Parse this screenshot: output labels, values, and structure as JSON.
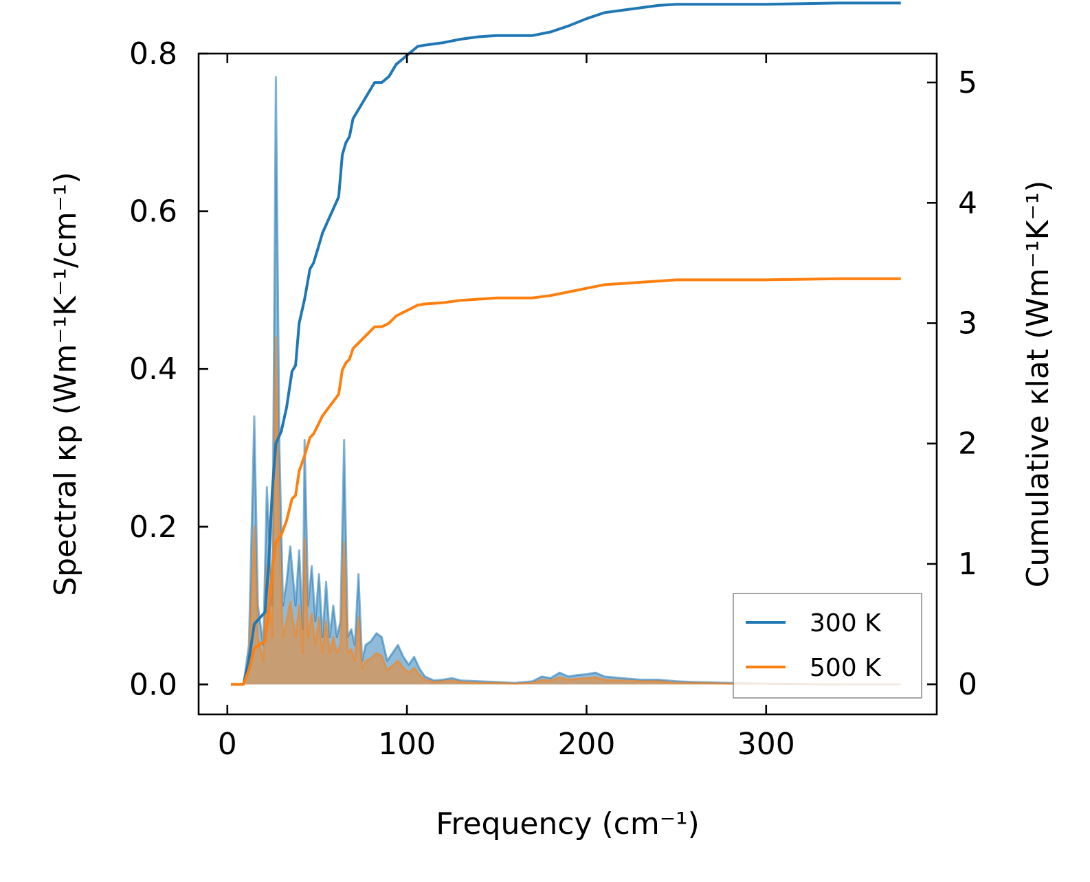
{
  "chart_data": {
    "type": "area+line",
    "title": "",
    "xlabel": "Frequency (cm⁻¹)",
    "ylabel_left": "Spectral κp (Wm⁻¹K⁻¹/cm⁻¹)",
    "ylabel_right": "Cumulative κlat (Wm⁻¹K⁻¹)",
    "xlim": [
      -16,
      395
    ],
    "ylim_left": [
      -0.038,
      0.8
    ],
    "ylim_right": [
      -0.25,
      5.24
    ],
    "x_ticks": [
      0,
      100,
      200,
      300
    ],
    "x_tick_labels": [
      "0",
      "100",
      "200",
      "300"
    ],
    "y_left_ticks": [
      0.0,
      0.2,
      0.4,
      0.6,
      0.8
    ],
    "y_left_tick_labels": [
      "0.0",
      "0.2",
      "0.4",
      "0.6",
      "0.8"
    ],
    "y_right_ticks": [
      0,
      1,
      2,
      3,
      4,
      5
    ],
    "y_right_tick_labels": [
      "0",
      "1",
      "2",
      "3",
      "4",
      "5"
    ],
    "legend_position": "lower-right",
    "series": [
      {
        "name": "300 K",
        "color": "#1f77b4",
        "spectral": [
          [
            2,
            0
          ],
          [
            9,
            0
          ],
          [
            12,
            0.05
          ],
          [
            15,
            0.34
          ],
          [
            17,
            0.1
          ],
          [
            20,
            0.05
          ],
          [
            22,
            0.25
          ],
          [
            25,
            0.1
          ],
          [
            27,
            0.77
          ],
          [
            29,
            0.3
          ],
          [
            31,
            0.1
          ],
          [
            33,
            0.13
          ],
          [
            35,
            0.175
          ],
          [
            38,
            0.1
          ],
          [
            40,
            0.17
          ],
          [
            42,
            0.07
          ],
          [
            43,
            0.31
          ],
          [
            45,
            0.1
          ],
          [
            47,
            0.15
          ],
          [
            49,
            0.08
          ],
          [
            51,
            0.14
          ],
          [
            53,
            0.06
          ],
          [
            55,
            0.13
          ],
          [
            57,
            0.06
          ],
          [
            59,
            0.1
          ],
          [
            61,
            0.06
          ],
          [
            63,
            0.08
          ],
          [
            65,
            0.31
          ],
          [
            67,
            0.06
          ],
          [
            69,
            0.07
          ],
          [
            71,
            0.05
          ],
          [
            73,
            0.14
          ],
          [
            75,
            0.03
          ],
          [
            77,
            0.05
          ],
          [
            80,
            0.055
          ],
          [
            83,
            0.065
          ],
          [
            86,
            0.06
          ],
          [
            89,
            0.03
          ],
          [
            92,
            0.04
          ],
          [
            95,
            0.05
          ],
          [
            98,
            0.035
          ],
          [
            101,
            0.025
          ],
          [
            104,
            0.035
          ],
          [
            107,
            0.02
          ],
          [
            110,
            0.01
          ],
          [
            115,
            0.005
          ],
          [
            120,
            0.006
          ],
          [
            125,
            0.008
          ],
          [
            130,
            0.005
          ],
          [
            140,
            0.004
          ],
          [
            150,
            0.003
          ],
          [
            160,
            0.002
          ],
          [
            170,
            0.004
          ],
          [
            175,
            0.01
          ],
          [
            180,
            0.008
          ],
          [
            185,
            0.015
          ],
          [
            190,
            0.01
          ],
          [
            195,
            0.012
          ],
          [
            200,
            0.013
          ],
          [
            205,
            0.015
          ],
          [
            210,
            0.01
          ],
          [
            220,
            0.008
          ],
          [
            230,
            0.006
          ],
          [
            240,
            0.006
          ],
          [
            250,
            0.004
          ],
          [
            260,
            0.003
          ],
          [
            280,
            0.002
          ],
          [
            300,
            0.001
          ],
          [
            340,
            0.0
          ],
          [
            375,
            0.0
          ]
        ],
        "cumulative": [
          [
            2,
            0
          ],
          [
            9,
            0
          ],
          [
            12,
            0.2
          ],
          [
            15,
            0.5
          ],
          [
            18,
            0.55
          ],
          [
            21,
            0.6
          ],
          [
            23,
            1.0
          ],
          [
            25,
            1.6
          ],
          [
            27,
            2.0
          ],
          [
            30,
            2.1
          ],
          [
            33,
            2.3
          ],
          [
            36,
            2.6
          ],
          [
            38,
            2.65
          ],
          [
            40,
            3.0
          ],
          [
            43,
            3.2
          ],
          [
            46,
            3.45
          ],
          [
            48,
            3.5
          ],
          [
            50,
            3.6
          ],
          [
            53,
            3.75
          ],
          [
            56,
            3.85
          ],
          [
            59,
            3.95
          ],
          [
            62,
            4.05
          ],
          [
            64,
            4.4
          ],
          [
            66,
            4.5
          ],
          [
            68,
            4.55
          ],
          [
            70,
            4.7
          ],
          [
            74,
            4.8
          ],
          [
            78,
            4.9
          ],
          [
            82,
            5.0
          ],
          [
            86,
            5.0
          ],
          [
            90,
            5.05
          ],
          [
            94,
            5.15
          ],
          [
            98,
            5.2
          ],
          [
            102,
            5.25
          ],
          [
            106,
            5.3
          ],
          [
            110,
            5.31
          ],
          [
            120,
            5.33
          ],
          [
            130,
            5.36
          ],
          [
            140,
            5.38
          ],
          [
            150,
            5.39
          ],
          [
            160,
            5.39
          ],
          [
            170,
            5.39
          ],
          [
            180,
            5.42
          ],
          [
            190,
            5.47
          ],
          [
            200,
            5.53
          ],
          [
            210,
            5.58
          ],
          [
            220,
            5.6
          ],
          [
            230,
            5.62
          ],
          [
            240,
            5.64
          ],
          [
            250,
            5.65
          ],
          [
            270,
            5.65
          ],
          [
            300,
            5.65
          ],
          [
            340,
            5.66
          ],
          [
            375,
            5.66
          ]
        ]
      },
      {
        "name": "500 K",
        "color": "#ff7f0e",
        "spectral": [
          [
            2,
            0
          ],
          [
            9,
            0
          ],
          [
            12,
            0.03
          ],
          [
            15,
            0.2
          ],
          [
            17,
            0.06
          ],
          [
            20,
            0.03
          ],
          [
            22,
            0.15
          ],
          [
            25,
            0.06
          ],
          [
            27,
            0.44
          ],
          [
            29,
            0.18
          ],
          [
            31,
            0.06
          ],
          [
            33,
            0.08
          ],
          [
            35,
            0.105
          ],
          [
            38,
            0.06
          ],
          [
            40,
            0.1
          ],
          [
            42,
            0.04
          ],
          [
            43,
            0.185
          ],
          [
            45,
            0.06
          ],
          [
            47,
            0.09
          ],
          [
            49,
            0.05
          ],
          [
            51,
            0.085
          ],
          [
            53,
            0.04
          ],
          [
            55,
            0.08
          ],
          [
            57,
            0.04
          ],
          [
            59,
            0.06
          ],
          [
            61,
            0.04
          ],
          [
            63,
            0.05
          ],
          [
            65,
            0.18
          ],
          [
            67,
            0.04
          ],
          [
            69,
            0.045
          ],
          [
            71,
            0.03
          ],
          [
            73,
            0.085
          ],
          [
            75,
            0.02
          ],
          [
            77,
            0.03
          ],
          [
            80,
            0.033
          ],
          [
            83,
            0.04
          ],
          [
            86,
            0.036
          ],
          [
            89,
            0.018
          ],
          [
            92,
            0.024
          ],
          [
            95,
            0.03
          ],
          [
            98,
            0.021
          ],
          [
            101,
            0.015
          ],
          [
            104,
            0.021
          ],
          [
            107,
            0.012
          ],
          [
            110,
            0.006
          ],
          [
            115,
            0.003
          ],
          [
            120,
            0.004
          ],
          [
            125,
            0.005
          ],
          [
            130,
            0.003
          ],
          [
            140,
            0.002
          ],
          [
            150,
            0.002
          ],
          [
            160,
            0.001
          ],
          [
            170,
            0.002
          ],
          [
            175,
            0.006
          ],
          [
            180,
            0.005
          ],
          [
            185,
            0.009
          ],
          [
            190,
            0.006
          ],
          [
            195,
            0.007
          ],
          [
            200,
            0.008
          ],
          [
            205,
            0.009
          ],
          [
            210,
            0.006
          ],
          [
            220,
            0.005
          ],
          [
            230,
            0.004
          ],
          [
            240,
            0.004
          ],
          [
            250,
            0.002
          ],
          [
            260,
            0.002
          ],
          [
            280,
            0.001
          ],
          [
            300,
            0.001
          ],
          [
            340,
            0.0
          ],
          [
            375,
            0.0
          ]
        ],
        "cumulative": [
          [
            2,
            0
          ],
          [
            9,
            0
          ],
          [
            12,
            0.12
          ],
          [
            15,
            0.3
          ],
          [
            18,
            0.33
          ],
          [
            21,
            0.36
          ],
          [
            23,
            0.6
          ],
          [
            25,
            0.95
          ],
          [
            27,
            1.18
          ],
          [
            30,
            1.24
          ],
          [
            33,
            1.36
          ],
          [
            36,
            1.54
          ],
          [
            38,
            1.57
          ],
          [
            40,
            1.77
          ],
          [
            43,
            1.9
          ],
          [
            46,
            2.05
          ],
          [
            48,
            2.08
          ],
          [
            50,
            2.14
          ],
          [
            53,
            2.23
          ],
          [
            56,
            2.29
          ],
          [
            59,
            2.35
          ],
          [
            62,
            2.41
          ],
          [
            64,
            2.61
          ],
          [
            66,
            2.67
          ],
          [
            68,
            2.7
          ],
          [
            70,
            2.79
          ],
          [
            74,
            2.85
          ],
          [
            78,
            2.91
          ],
          [
            82,
            2.97
          ],
          [
            86,
            2.97
          ],
          [
            90,
            3.0
          ],
          [
            94,
            3.06
          ],
          [
            98,
            3.09
          ],
          [
            102,
            3.12
          ],
          [
            106,
            3.15
          ],
          [
            110,
            3.16
          ],
          [
            120,
            3.17
          ],
          [
            130,
            3.19
          ],
          [
            140,
            3.2
          ],
          [
            150,
            3.21
          ],
          [
            160,
            3.21
          ],
          [
            170,
            3.21
          ],
          [
            180,
            3.23
          ],
          [
            190,
            3.26
          ],
          [
            200,
            3.29
          ],
          [
            210,
            3.32
          ],
          [
            220,
            3.33
          ],
          [
            230,
            3.34
          ],
          [
            240,
            3.35
          ],
          [
            250,
            3.36
          ],
          [
            270,
            3.36
          ],
          [
            300,
            3.36
          ],
          [
            340,
            3.37
          ],
          [
            375,
            3.37
          ]
        ]
      }
    ]
  }
}
